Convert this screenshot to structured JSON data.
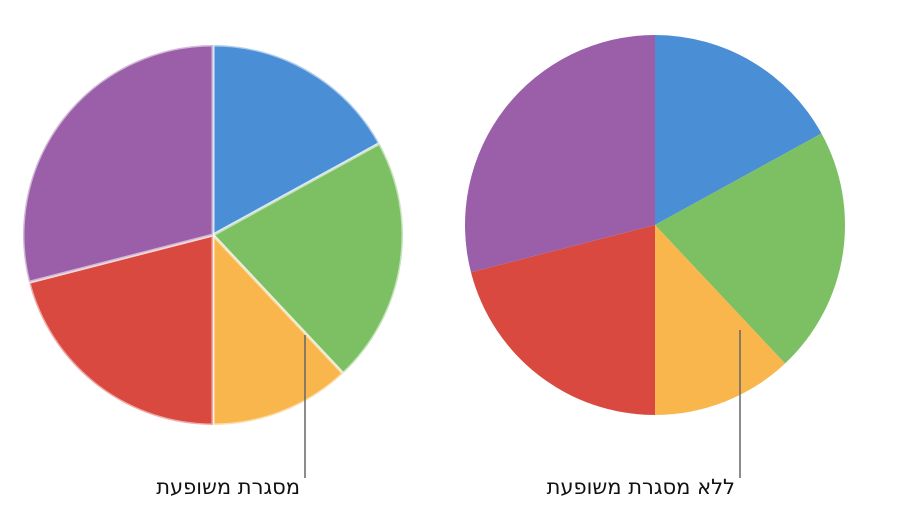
{
  "chart_data": [
    {
      "type": "pie",
      "annotation": "מסגרת משופעת",
      "values": [
        17,
        21,
        12,
        21,
        29
      ],
      "colors": [
        "#4a8fd6",
        "#7cc063",
        "#f8b64c",
        "#d9493f",
        "#9a5fa8"
      ],
      "slice_border": true
    },
    {
      "type": "pie",
      "annotation": "ללא מסגרת משופעת",
      "values": [
        17,
        21,
        12,
        21,
        29
      ],
      "colors": [
        "#4a8fd6",
        "#7cc063",
        "#f8b64c",
        "#d9493f",
        "#9a5fa8"
      ],
      "slice_border": false
    }
  ]
}
